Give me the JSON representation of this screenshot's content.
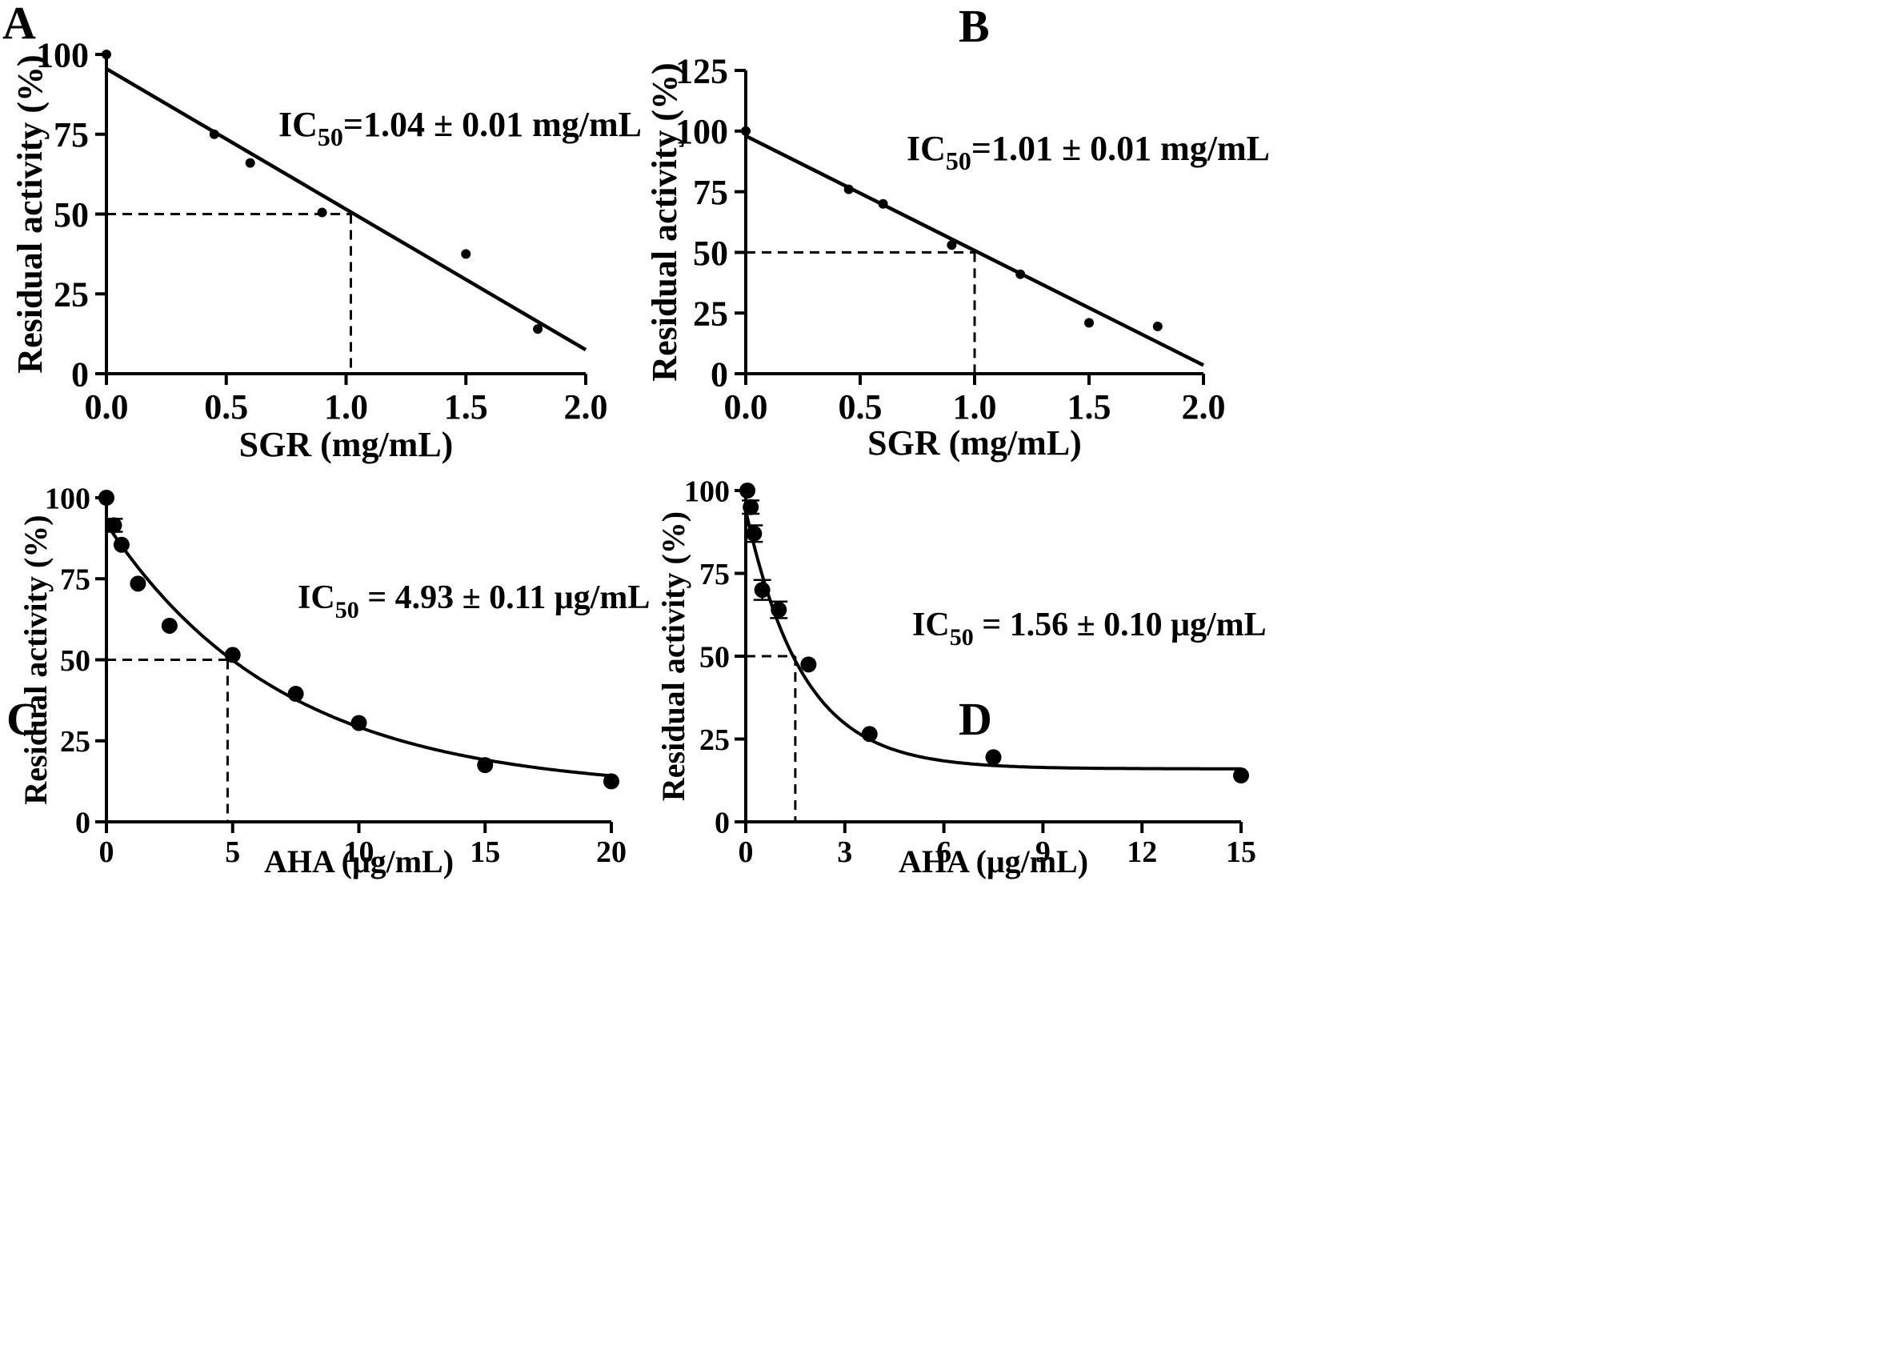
{
  "figure": {
    "background": "#ffffff",
    "ink": "#000000"
  },
  "chart_data": [
    {
      "panel": "A",
      "type": "scatter",
      "fit": "linear",
      "xlabel": "SGR (mg/mL)",
      "ylabel": "Residual activity (%)",
      "xlim": [
        0,
        2.0
      ],
      "ylim": [
        0,
        100
      ],
      "xticks": [
        "0.0",
        "0.5",
        "1.0",
        "1.5",
        "2.0"
      ],
      "yticks": [
        "0",
        "25",
        "50",
        "75",
        "100"
      ],
      "points": {
        "x": [
          0,
          0.45,
          0.6,
          0.9,
          1.5,
          1.8
        ],
        "y": [
          100,
          75,
          66,
          50.5,
          37.5,
          14
        ]
      },
      "fit_line": {
        "x": [
          0,
          2.0
        ],
        "y": [
          95.5,
          7.5
        ]
      },
      "ic50": {
        "x": 1.02,
        "y": 50
      },
      "annotation": {
        "prefix": "IC",
        "sub": "50",
        "text": "=1.04 ± 0.01 mg/mL"
      },
      "marker": "small"
    },
    {
      "panel": "B",
      "type": "scatter",
      "fit": "linear",
      "xlabel": "SGR (mg/mL)",
      "ylabel": "Residual activity (%)",
      "xlim": [
        0,
        2.0
      ],
      "ylim": [
        0,
        125
      ],
      "xticks": [
        "0.0",
        "0.5",
        "1.0",
        "1.5",
        "2.0"
      ],
      "yticks": [
        "0",
        "25",
        "50",
        "75",
        "100",
        "125"
      ],
      "points": {
        "x": [
          0,
          0.45,
          0.6,
          0.9,
          1.2,
          1.5,
          1.8
        ],
        "y": [
          100,
          76,
          70,
          53,
          41,
          21,
          19.5
        ]
      },
      "fit_line": {
        "x": [
          0,
          2.0
        ],
        "y": [
          98,
          3.5
        ]
      },
      "ic50": {
        "x": 1.0,
        "y": 50
      },
      "annotation": {
        "prefix": "IC",
        "sub": "50",
        "text": "=1.01 ± 0.01 mg/mL"
      },
      "marker": "small"
    },
    {
      "panel": "C",
      "type": "scatter",
      "fit": "exponential decay",
      "xlabel": "AHA (μg/mL)",
      "ylabel": "Residual activity (%)",
      "xlim": [
        0,
        20
      ],
      "ylim": [
        0,
        100
      ],
      "xticks": [
        "0",
        "5",
        "10",
        "15",
        "20"
      ],
      "yticks": [
        "0",
        "25",
        "50",
        "75",
        "100"
      ],
      "points": {
        "x": [
          0,
          0.3,
          0.6,
          1.25,
          2.5,
          5,
          7.5,
          10,
          15,
          20
        ],
        "y": [
          100,
          91.5,
          85.5,
          73.5,
          60.5,
          51.5,
          39.5,
          30.5,
          17.5,
          12.5
        ]
      },
      "error_bars": [
        0,
        2.0,
        0,
        0,
        0,
        0,
        0,
        0,
        0,
        0
      ],
      "fit_curve": {
        "model": "y = 9.5 + 82.5*exp(-0.143*x)"
      },
      "ic50": {
        "x": 4.8,
        "y": 50
      },
      "annotation": {
        "prefix": "IC",
        "sub": "50",
        "text": " = 4.93 ± 0.11 μg/mL"
      },
      "marker": "large"
    },
    {
      "panel": "D",
      "type": "scatter",
      "fit": "exponential decay",
      "xlabel": "AHA (μg/mL)",
      "ylabel": "Residual activity (%)",
      "xlim": [
        0,
        15
      ],
      "ylim": [
        0,
        100
      ],
      "xticks": [
        "0",
        "3",
        "6",
        "9",
        "12",
        "15"
      ],
      "yticks": [
        "0",
        "25",
        "50",
        "75",
        "100"
      ],
      "points": {
        "x": [
          0.05,
          0.15,
          0.25,
          0.5,
          1.0,
          1.9,
          3.75,
          7.5,
          15
        ],
        "y": [
          100,
          95,
          87,
          70,
          64,
          47.5,
          26.5,
          19.5,
          14
        ]
      },
      "error_bars": [
        0,
        2.0,
        2.5,
        3.0,
        2.5,
        0,
        0,
        0,
        0
      ],
      "fit_curve": {
        "model": "y = 16 + 78*exp(-0.58*x)"
      },
      "ic50": {
        "x": 1.5,
        "y": 50
      },
      "annotation": {
        "prefix": "IC",
        "sub": "50",
        "text": " = 1.56 ± 0.10 μg/mL"
      },
      "marker": "large"
    }
  ]
}
